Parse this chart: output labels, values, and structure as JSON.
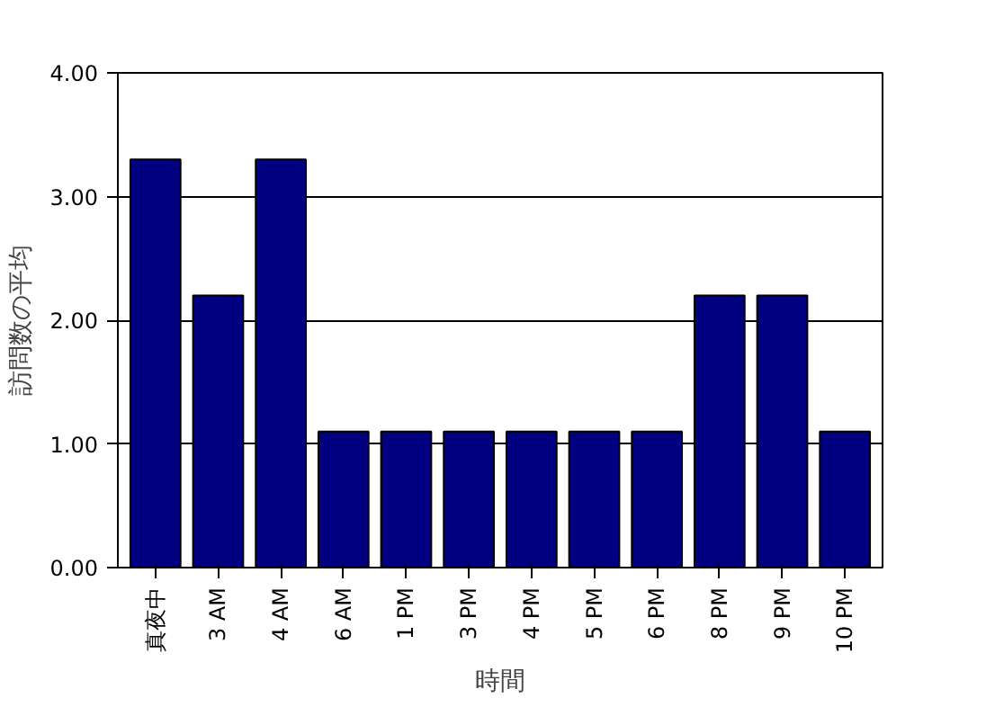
{
  "chart_data": {
    "type": "bar",
    "xlabel": "時間",
    "ylabel": "訪問数の平均",
    "categories": [
      "真夜中",
      "3 AM",
      "4 AM",
      "6 AM",
      "1 PM",
      "3 PM",
      "4 PM",
      "5 PM",
      "6 PM",
      "8 PM",
      "9 PM",
      "10 PM"
    ],
    "values": [
      3.3,
      2.2,
      3.3,
      1.1,
      1.1,
      1.1,
      1.1,
      1.1,
      1.1,
      2.2,
      2.2,
      1.1
    ],
    "color": "#000080",
    "ylim": [
      0,
      4
    ],
    "yticks": [
      {
        "value": 0,
        "label": "0.00"
      },
      {
        "value": 1,
        "label": "1.00"
      },
      {
        "value": 2,
        "label": "2.00"
      },
      {
        "value": 3,
        "label": "3.00"
      },
      {
        "value": 4,
        "label": "4.00"
      }
    ],
    "grid": "y"
  }
}
